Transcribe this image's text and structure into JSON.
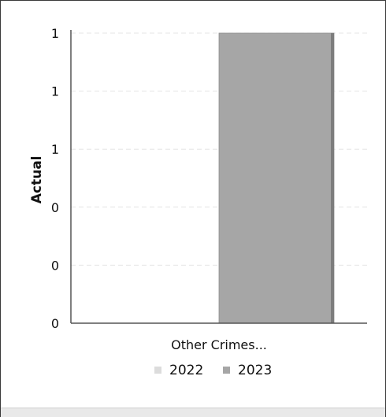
{
  "chart_data": {
    "type": "bar",
    "title": "",
    "xlabel": "",
    "ylabel": "Actual",
    "categories": [
      "Other Crimes..."
    ],
    "series": [
      {
        "name": "2022",
        "values": [
          0
        ],
        "color": "#dcdcdc"
      },
      {
        "name": "2023",
        "values": [
          1
        ],
        "color": "#a6a6a6"
      }
    ],
    "ylim": [
      0,
      1
    ],
    "yticks": [
      0,
      0.2,
      0.4,
      0.6,
      0.8,
      1
    ],
    "ytick_labels": [
      "0",
      "0",
      "0",
      "1",
      "1",
      "1"
    ],
    "grid": true,
    "legend_position": "bottom"
  }
}
